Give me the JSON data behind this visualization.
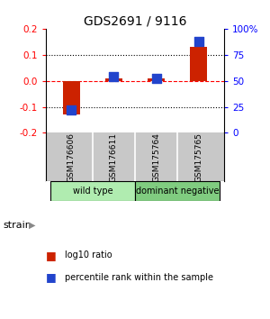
{
  "title": "GDS2691 / 9116",
  "samples": [
    "GSM176606",
    "GSM176611",
    "GSM175764",
    "GSM175765"
  ],
  "log10_ratio": [
    -0.13,
    0.01,
    0.01,
    0.13
  ],
  "percentile_rank": [
    22,
    54,
    52,
    88
  ],
  "ylim_left": [
    -0.2,
    0.2
  ],
  "ylim_right": [
    0,
    100
  ],
  "yticks_left": [
    -0.2,
    -0.1,
    0.0,
    0.1,
    0.2
  ],
  "yticks_right": [
    0,
    25,
    50,
    75,
    100
  ],
  "ytick_labels_right": [
    "0",
    "25",
    "50",
    "75",
    "100%"
  ],
  "bar_color": "#cc2200",
  "dot_color": "#2244cc",
  "bar_width": 0.4,
  "dot_size": 45,
  "legend_red": "log10 ratio",
  "legend_blue": "percentile rank within the sample",
  "strain_label": "strain",
  "bg_color_sample_box": "#c8c8c8",
  "bg_color_strain_wt": "#b0ecb0",
  "bg_color_strain_dn": "#80cc80",
  "strain_groups": [
    {
      "label": "wild type",
      "cols": [
        0,
        1
      ],
      "color": "#b0ecb0"
    },
    {
      "label": "dominant negative",
      "cols": [
        2,
        3
      ],
      "color": "#80cc80"
    }
  ]
}
